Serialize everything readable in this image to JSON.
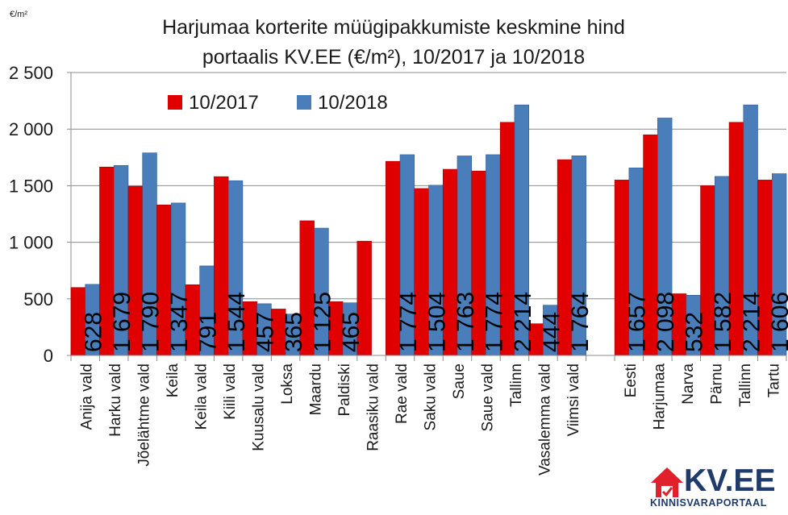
{
  "chart_data": {
    "type": "bar",
    "title_line1": "Harjumaa korterite müügipakkumiste keskmine hind",
    "title_line2": "portaalis KV.EE (€/m²), 10/2017 ja 10/2018",
    "ylabel": "€/m²",
    "ylim": [
      0,
      2500
    ],
    "yticks": [
      0,
      500,
      1000,
      1500,
      2000,
      2500
    ],
    "ytick_labels": [
      "0",
      "500",
      "1 000",
      "1 500",
      "2 000",
      "2 500"
    ],
    "grid": true,
    "legend_position": "top-left",
    "categories": [
      "Anija vald",
      "Harku vald",
      "Jõelähtme vald",
      "Keila",
      "Keila vald",
      "Kiili vald",
      "Kuusalu vald",
      "Loksa",
      "Maardu",
      "Paldiski",
      "Raasiku vald",
      "Rae vald",
      "Saku vald",
      "Saue",
      "Saue vald",
      "Tallinn",
      "Vasalemma vald",
      "Viimsi vald",
      "",
      "Eesti",
      "Harjumaa",
      "Narva",
      "Pärnu",
      "Tallinn",
      "Tartu"
    ],
    "series": [
      {
        "name": "10/2017",
        "color": "#e00000",
        "values": [
          600,
          1665,
          1495,
          1330,
          625,
          1580,
          475,
          410,
          1190,
          475,
          1010,
          1715,
          1475,
          1645,
          1630,
          2060,
          280,
          1730,
          null,
          1550,
          1950,
          545,
          1500,
          2060,
          1550
        ]
      },
      {
        "name": "10/2018",
        "color": "#4a7ebb",
        "values": [
          628,
          1679,
          1790,
          1347,
          791,
          1544,
          457,
          365,
          1125,
          465,
          null,
          1774,
          1504,
          1763,
          1774,
          2214,
          444,
          1764,
          null,
          1657,
          2098,
          532,
          1582,
          2214,
          1606
        ],
        "labels": [
          "628",
          "1 679",
          "1 790",
          "1 347",
          "791",
          "1 544",
          "457",
          "365",
          "1 125",
          "465",
          "",
          "1 774",
          "1 504",
          "1 763",
          "1 774",
          "2 214",
          "444",
          "1 764",
          "",
          "1 657",
          "2 098",
          "532",
          "1 582",
          "2 214",
          "1 606"
        ]
      }
    ]
  },
  "logo": {
    "text": "KV.EE",
    "subtext": "KINNISVARAPORTAAL"
  }
}
